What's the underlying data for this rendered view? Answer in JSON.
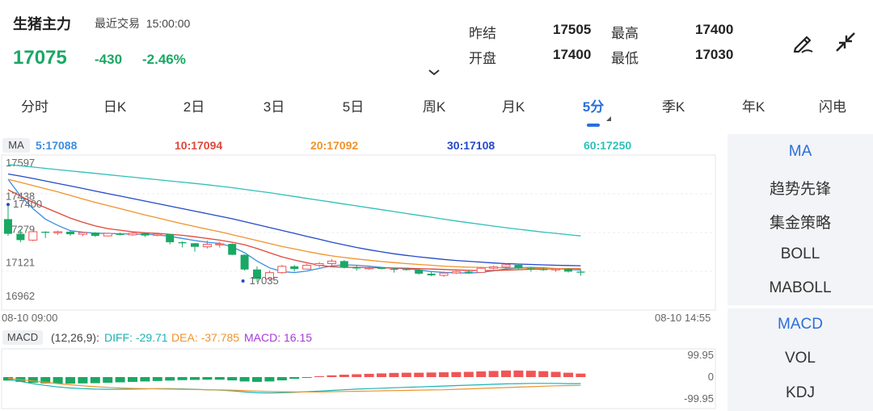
{
  "header": {
    "title": "生猪主力",
    "trade_status": "最近交易  15:00:00",
    "price": "17075",
    "change": "-430",
    "change_pct": "-2.46%"
  },
  "quote": {
    "prev_settle_label": "昨结",
    "prev_settle": "17505",
    "open_label": "开盘",
    "open": "17400",
    "high_label": "最高",
    "high": "17400",
    "low_label": "最低",
    "low": "17030"
  },
  "tabs": [
    {
      "label": "分时"
    },
    {
      "label": "日K"
    },
    {
      "label": "2日"
    },
    {
      "label": "3日"
    },
    {
      "label": "5日"
    },
    {
      "label": "周K"
    },
    {
      "label": "月K"
    },
    {
      "label": "5分"
    },
    {
      "label": "季K"
    },
    {
      "label": "年K"
    },
    {
      "label": "闪电"
    }
  ],
  "active_tab": "5分",
  "ma_legend": {
    "badge": "MA",
    "items": [
      {
        "label": "5:17088",
        "color": "#3c8ee0"
      },
      {
        "label": "10:17094",
        "color": "#e0473a"
      },
      {
        "label": "20:17092",
        "color": "#f0932b"
      },
      {
        "label": "30:17108",
        "color": "#2449c8"
      },
      {
        "label": "60:17250",
        "color": "#2ec0b8"
      }
    ]
  },
  "macd_legend": {
    "badge": "MACD",
    "params": "(12,26,9):",
    "diff": "DIFF: -29.71",
    "dea": "DEA: -37.785",
    "macd": "MACD: 16.15",
    "diff_color": "#1bb3b3",
    "dea_color": "#f0932b",
    "macd_color": "#a63ad6"
  },
  "side_panel": {
    "group1": [
      "MA",
      "趋势先锋",
      "集金策略",
      "BOLL",
      "MABOLL"
    ],
    "group2": [
      "MACD",
      "VOL",
      "KDJ"
    ],
    "active1": "MA",
    "active2": "MACD"
  },
  "colors": {
    "up": "#f05555",
    "down": "#1aa865",
    "accent": "#2a6fdb"
  },
  "chart_data": [
    {
      "type": "candlestick",
      "y_ticks": [
        "17597",
        "17438",
        "17279",
        "17121",
        "16962"
      ],
      "ylim": [
        16962,
        17597
      ],
      "x_range_labels": [
        "08-10 09:00",
        "08-10 14:55"
      ],
      "annotations": [
        {
          "label": "17400",
          "x_index": 0,
          "value": 17400
        },
        {
          "label": "17035",
          "x_index": 19,
          "value": 17035
        }
      ],
      "candles": [
        [
          17330,
          17400,
          17250,
          17260
        ],
        [
          17260,
          17280,
          17220,
          17230
        ],
        [
          17230,
          17275,
          17225,
          17270
        ],
        [
          17270,
          17272,
          17240,
          17265
        ],
        [
          17265,
          17275,
          17255,
          17270
        ],
        [
          17270,
          17275,
          17250,
          17258
        ],
        [
          17258,
          17270,
          17248,
          17266
        ],
        [
          17266,
          17268,
          17245,
          17250
        ],
        [
          17250,
          17265,
          17248,
          17262
        ],
        [
          17262,
          17266,
          17252,
          17255
        ],
        [
          17255,
          17268,
          17250,
          17263
        ],
        [
          17263,
          17268,
          17245,
          17252
        ],
        [
          17252,
          17262,
          17248,
          17258
        ],
        [
          17258,
          17260,
          17210,
          17220
        ],
        [
          17220,
          17225,
          17195,
          17215
        ],
        [
          17215,
          17216,
          17175,
          17198
        ],
        [
          17198,
          17228,
          17190,
          17210
        ],
        [
          17210,
          17222,
          17195,
          17212
        ],
        [
          17212,
          17215,
          17158,
          17160
        ],
        [
          17160,
          17162,
          17085,
          17090
        ],
        [
          17090,
          17105,
          17030,
          17045
        ],
        [
          17045,
          17085,
          17035,
          17075
        ],
        [
          17075,
          17112,
          17070,
          17105
        ],
        [
          17105,
          17112,
          17080,
          17092
        ],
        [
          17092,
          17118,
          17090,
          17110
        ],
        [
          17110,
          17125,
          17100,
          17118
        ],
        [
          17118,
          17140,
          17110,
          17130
        ],
        [
          17130,
          17135,
          17095,
          17100
        ],
        [
          17100,
          17110,
          17085,
          17095
        ],
        [
          17095,
          17103,
          17088,
          17098
        ],
        [
          17098,
          17102,
          17090,
          17093
        ],
        [
          17093,
          17099,
          17075,
          17092
        ],
        [
          17092,
          17098,
          17085,
          17088
        ],
        [
          17088,
          17092,
          17065,
          17070
        ],
        [
          17070,
          17078,
          17058,
          17062
        ],
        [
          17062,
          17080,
          17055,
          17073
        ],
        [
          17073,
          17084,
          17068,
          17080
        ],
        [
          17080,
          17086,
          17070,
          17076
        ],
        [
          17076,
          17100,
          17074,
          17096
        ],
        [
          17096,
          17108,
          17090,
          17102
        ],
        [
          17102,
          17120,
          17095,
          17112
        ],
        [
          17112,
          17118,
          17090,
          17095
        ],
        [
          17095,
          17098,
          17080,
          17092
        ],
        [
          17092,
          17098,
          17083,
          17088
        ],
        [
          17088,
          17097,
          17079,
          17093
        ],
        [
          17093,
          17096,
          17075,
          17080
        ],
        [
          17080,
          17090,
          17060,
          17075
        ]
      ],
      "ma_series": {
        "ma5": [
          17520,
          17440,
          17380,
          17330,
          17300,
          17275,
          17268,
          17263,
          17262,
          17260,
          17259,
          17258,
          17255,
          17248,
          17238,
          17228,
          17220,
          17214,
          17198,
          17170,
          17130,
          17098,
          17080,
          17075,
          17083,
          17095,
          17107,
          17112,
          17110,
          17106,
          17100,
          17096,
          17094,
          17088,
          17080,
          17076,
          17074,
          17073,
          17076,
          17084,
          17092,
          17098,
          17100,
          17098,
          17094,
          17090,
          17088
        ],
        "ma10": [
          17470,
          17440,
          17410,
          17385,
          17360,
          17335,
          17315,
          17298,
          17285,
          17277,
          17270,
          17265,
          17262,
          17258,
          17253,
          17246,
          17238,
          17230,
          17220,
          17208,
          17190,
          17170,
          17150,
          17135,
          17122,
          17110,
          17103,
          17100,
          17100,
          17099,
          17098,
          17097,
          17096,
          17094,
          17092,
          17090,
          17088,
          17086,
          17085,
          17085,
          17087,
          17089,
          17091,
          17092,
          17093,
          17094,
          17094
        ],
        "ma20": [
          17520,
          17505,
          17490,
          17475,
          17460,
          17443,
          17426,
          17410,
          17395,
          17380,
          17365,
          17350,
          17336,
          17322,
          17308,
          17295,
          17282,
          17270,
          17256,
          17242,
          17228,
          17214,
          17200,
          17188,
          17176,
          17165,
          17155,
          17147,
          17140,
          17134,
          17128,
          17123,
          17118,
          17114,
          17110,
          17106,
          17103,
          17101,
          17100,
          17099,
          17098,
          17097,
          17096,
          17095,
          17094,
          17093,
          17092
        ],
        "ma30": [
          17545,
          17535,
          17524,
          17512,
          17500,
          17488,
          17476,
          17464,
          17452,
          17440,
          17428,
          17416,
          17404,
          17392,
          17380,
          17368,
          17356,
          17344,
          17332,
          17318,
          17304,
          17290,
          17276,
          17262,
          17248,
          17234,
          17220,
          17207,
          17195,
          17184,
          17174,
          17165,
          17157,
          17150,
          17144,
          17138,
          17133,
          17129,
          17125,
          17121,
          17118,
          17116,
          17114,
          17112,
          17110,
          17109,
          17108
        ],
        "ma60": [
          17590,
          17584,
          17578,
          17572,
          17566,
          17560,
          17554,
          17548,
          17542,
          17536,
          17530,
          17524,
          17518,
          17512,
          17506,
          17500,
          17494,
          17487,
          17480,
          17472,
          17464,
          17456,
          17447,
          17438,
          17429,
          17420,
          17411,
          17402,
          17393,
          17384,
          17375,
          17366,
          17357,
          17348,
          17339,
          17330,
          17321,
          17313,
          17305,
          17297,
          17289,
          17282,
          17275,
          17268,
          17262,
          17256,
          17250
        ]
      }
    },
    {
      "type": "macd",
      "y_ticks": [
        "99.95",
        "0",
        "-99.95"
      ],
      "ylim": [
        -99.95,
        99.95
      ],
      "histogram": [
        -16,
        -22,
        -26,
        -29,
        -30,
        -30,
        -29,
        -28,
        -26,
        -24,
        -22,
        -20,
        -18,
        -16,
        -14,
        -13,
        -12,
        -12,
        -15,
        -20,
        -22,
        -20,
        -15,
        -8,
        -2,
        4,
        8,
        11,
        13,
        15,
        17,
        19,
        20,
        20,
        21,
        22,
        23,
        24,
        26,
        28,
        30,
        30,
        29,
        27,
        24,
        20,
        16
      ],
      "diff": [
        -10,
        -20,
        -30,
        -38,
        -45,
        -50,
        -53,
        -55,
        -56,
        -56,
        -55,
        -54,
        -53,
        -53,
        -54,
        -56,
        -58,
        -60,
        -63,
        -68,
        -72,
        -73,
        -72,
        -70,
        -67,
        -64,
        -61,
        -58,
        -55,
        -53,
        -51,
        -49,
        -47,
        -45,
        -43,
        -41,
        -39,
        -37,
        -35,
        -33,
        -31,
        -30,
        -29,
        -29,
        -29,
        -30,
        -30
      ],
      "dea": [
        -5,
        -12,
        -18,
        -24,
        -30,
        -35,
        -40,
        -44,
        -47,
        -50,
        -52,
        -53,
        -54,
        -55,
        -56,
        -57,
        -58,
        -59,
        -60,
        -62,
        -64,
        -66,
        -67,
        -68,
        -68,
        -68,
        -67,
        -66,
        -65,
        -64,
        -63,
        -62,
        -61,
        -60,
        -59,
        -58,
        -56,
        -54,
        -52,
        -50,
        -48,
        -46,
        -44,
        -42,
        -40,
        -39,
        -38
      ]
    }
  ]
}
